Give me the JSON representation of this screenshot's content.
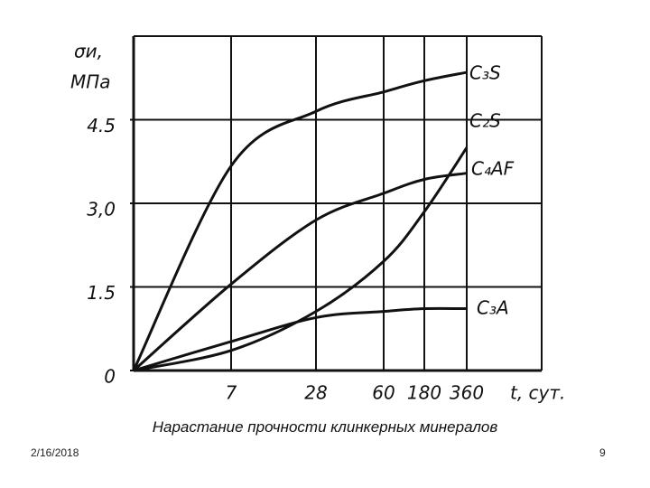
{
  "chart_data": {
    "type": "line",
    "title": "Нарастание прочности клинкерных минералов",
    "y_label": [
      "σи,",
      "МПа"
    ],
    "x_label": "t, сут.",
    "categories": [
      "0",
      "7",
      "28",
      "60",
      "180",
      "360"
    ],
    "ylim": [
      0,
      6
    ],
    "yticks": [
      0,
      1.5,
      {
        "value": 3,
        "label": "3,0"
      },
      4.5
    ],
    "grid": true,
    "series": [
      {
        "name": "C₃S",
        "color": "#111111",
        "values": [
          0,
          3.67,
          4.65,
          5.0,
          5.2,
          5.35
        ]
      },
      {
        "name": "C₂S",
        "color": "#111111",
        "values": [
          0,
          0.36,
          1.06,
          1.96,
          2.85,
          4.0
        ]
      },
      {
        "name": "C₄AF",
        "color": "#111111",
        "values": [
          0,
          1.55,
          2.7,
          3.18,
          3.43,
          3.54
        ]
      },
      {
        "name": "C₃A",
        "color": "#111111",
        "values": [
          0,
          0.52,
          0.95,
          1.06,
          1.11,
          1.11
        ]
      }
    ]
  },
  "footer": {
    "date": "2/16/2018",
    "page": "9"
  }
}
